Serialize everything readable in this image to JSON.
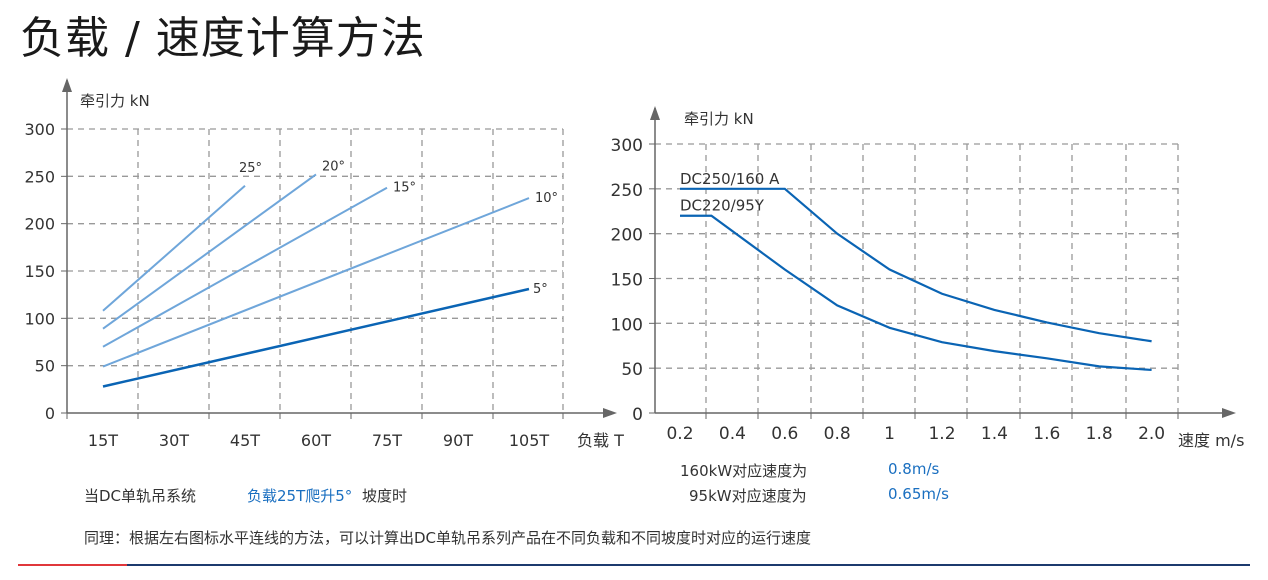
{
  "title": "负载 / 速度计算方法",
  "colors": {
    "dark_line": "#0a64b4",
    "light_line": "#6fa6da",
    "grid": "#999999",
    "axis": "#666666",
    "accent_red": "#e0373b",
    "accent_navy": "#1c3a6e"
  },
  "chart_data": [
    {
      "type": "line",
      "ylabel": "牵引力 kN",
      "xlabel": "负载 T",
      "x_ticks": [
        "15T",
        "30T",
        "45T",
        "60T",
        "75T",
        "90T",
        "105T"
      ],
      "y_ticks": [
        "0",
        "50",
        "100",
        "150",
        "200",
        "250",
        "300"
      ],
      "xlim": [
        15,
        105
      ],
      "ylim": [
        0,
        300
      ],
      "grid": true,
      "series": [
        {
          "name": "25°",
          "x": [
            15,
            45
          ],
          "y": [
            108,
            240
          ]
        },
        {
          "name": "20°",
          "x": [
            15,
            60
          ],
          "y": [
            89,
            252
          ]
        },
        {
          "name": "15°",
          "x": [
            15,
            75
          ],
          "y": [
            70,
            238
          ]
        },
        {
          "name": "10°",
          "x": [
            15,
            105
          ],
          "y": [
            49,
            227
          ]
        },
        {
          "name": "5°",
          "x": [
            15,
            105
          ],
          "y": [
            28,
            131
          ]
        }
      ]
    },
    {
      "type": "line",
      "ylabel": "牵引力 kN",
      "xlabel": "速度 m/s",
      "x_ticks": [
        "0.2",
        "0.4",
        "0.6",
        "0.8",
        "1",
        "1.2",
        "1.4",
        "1.6",
        "1.8",
        "2.0"
      ],
      "y_ticks": [
        "0",
        "50",
        "100",
        "150",
        "200",
        "250",
        "300"
      ],
      "xlim": [
        0.2,
        2.0
      ],
      "ylim": [
        0,
        300
      ],
      "grid": true,
      "series": [
        {
          "name": "DC250/160 A",
          "x": [
            0.2,
            0.6,
            0.8,
            1.0,
            1.2,
            1.4,
            1.6,
            1.8,
            2.0
          ],
          "y": [
            250,
            250,
            200,
            160,
            133,
            115,
            101,
            89,
            80
          ]
        },
        {
          "name": "DC220/95Y",
          "x": [
            0.2,
            0.32,
            0.6,
            0.8,
            1.0,
            1.2,
            1.4,
            1.6,
            1.8,
            2.0
          ],
          "y": [
            220,
            220,
            160,
            120,
            95,
            79,
            69,
            61,
            52,
            48
          ]
        }
      ]
    }
  ],
  "notes": {
    "left_prefix": "当DC单轨吊系统",
    "left_highlight": "负载25T爬升5°",
    "left_suffix": "坡度时",
    "speed1_label": "160kW对应速度为",
    "speed1_value": "0.8m/s",
    "speed2_label": "95kW对应速度为",
    "speed2_value": "0.65m/s",
    "summary": "同理：根据左右图标水平连线的方法，可以计算出DC单轨吊系列产品在不同负载和不同坡度时对应的运行速度"
  }
}
